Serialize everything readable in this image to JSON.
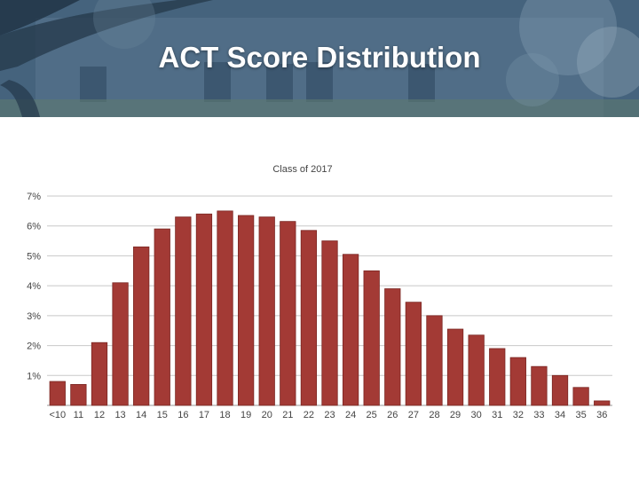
{
  "slide": {
    "title": "ACT Score Distribution"
  },
  "colors": {
    "bar": "#a33a35",
    "bar_stroke": "#7a2622",
    "grid": "#c8c8c8",
    "header": "#4a6a86"
  },
  "chart_data": {
    "type": "bar",
    "title": "Class of 2017",
    "xlabel": "",
    "ylabel": "",
    "ylim": [
      0,
      7
    ],
    "yticks": [
      1,
      2,
      3,
      4,
      5,
      6,
      7
    ],
    "ytick_labels": [
      "1%",
      "2%",
      "3%",
      "4%",
      "5%",
      "6%",
      "7%"
    ],
    "grid": true,
    "categories": [
      "<10",
      "11",
      "12",
      "13",
      "14",
      "15",
      "16",
      "17",
      "18",
      "19",
      "20",
      "21",
      "22",
      "23",
      "24",
      "25",
      "26",
      "27",
      "28",
      "29",
      "30",
      "31",
      "32",
      "33",
      "34",
      "35",
      "36"
    ],
    "values": [
      0.8,
      0.7,
      2.1,
      4.1,
      5.3,
      5.9,
      6.3,
      6.4,
      6.5,
      6.35,
      6.3,
      6.15,
      5.85,
      5.5,
      5.05,
      4.5,
      3.9,
      3.45,
      3.0,
      2.55,
      2.35,
      1.9,
      1.6,
      1.3,
      1.0,
      0.6,
      0.15
    ]
  }
}
